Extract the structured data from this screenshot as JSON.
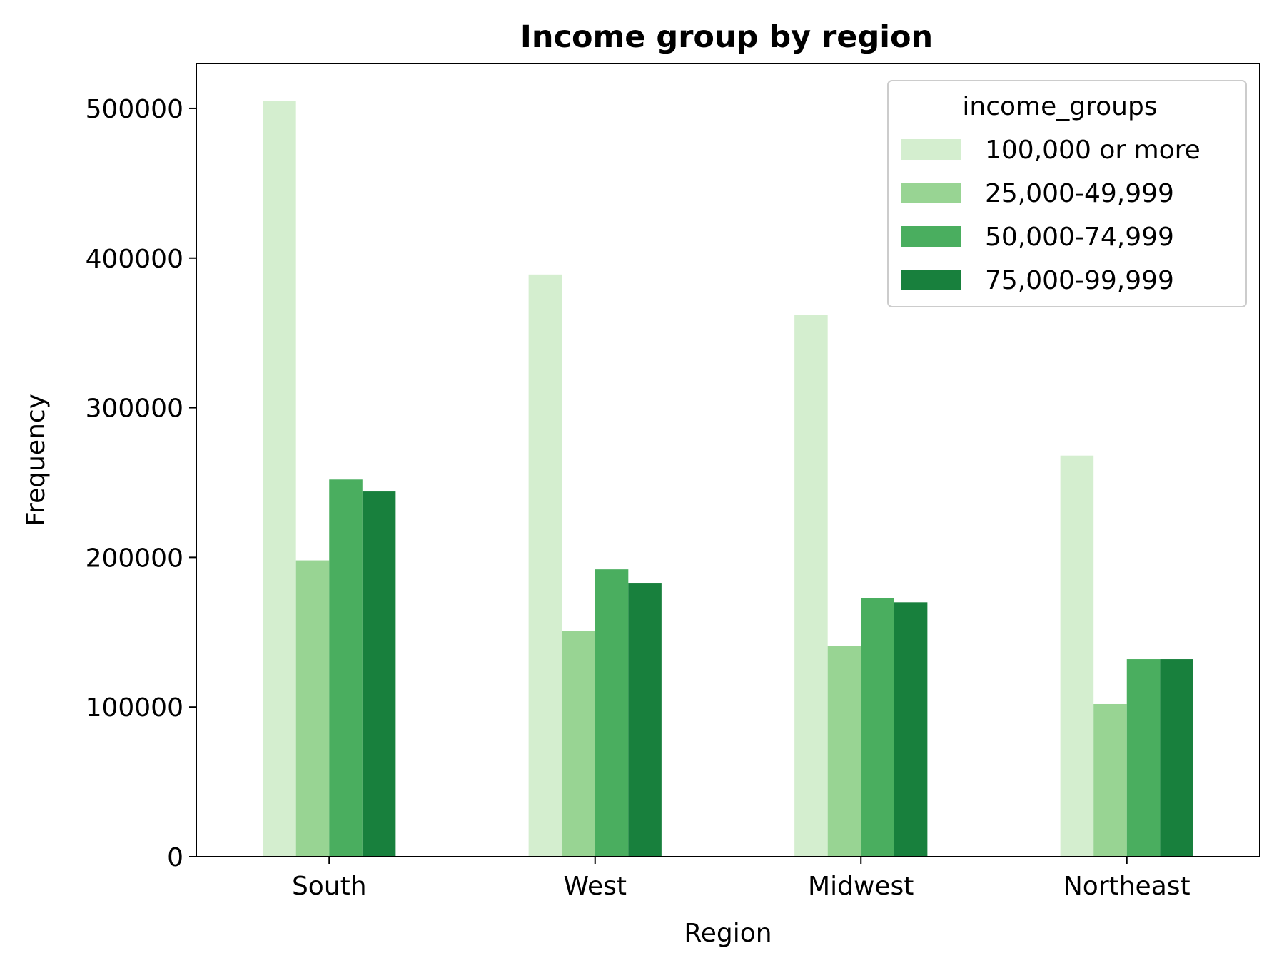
{
  "chart_data": {
    "type": "bar",
    "title": "Income group by region",
    "xlabel": "Region",
    "ylabel": "Frequency",
    "categories": [
      "South",
      "West",
      "Midwest",
      "Northeast"
    ],
    "ylim": [
      0,
      530000
    ],
    "yticks": [
      0,
      100000,
      200000,
      300000,
      400000,
      500000
    ],
    "ytick_labels": [
      "0",
      "100000",
      "200000",
      "300000",
      "400000",
      "500000"
    ],
    "grid": false,
    "legend": {
      "title": "income_groups",
      "placement": "top-right"
    },
    "series": [
      {
        "name": "100,000 or more",
        "color": "#d4eecf",
        "values": [
          505000,
          389000,
          362000,
          268000
        ]
      },
      {
        "name": "25,000-49,999",
        "color": "#98d493",
        "values": [
          198000,
          151000,
          141000,
          102000
        ]
      },
      {
        "name": "50,000-74,999",
        "color": "#4aae5f",
        "values": [
          252000,
          192000,
          173000,
          132000
        ]
      },
      {
        "name": "75,000-99,999",
        "color": "#18803d",
        "values": [
          244000,
          183000,
          170000,
          132000
        ]
      }
    ]
  }
}
